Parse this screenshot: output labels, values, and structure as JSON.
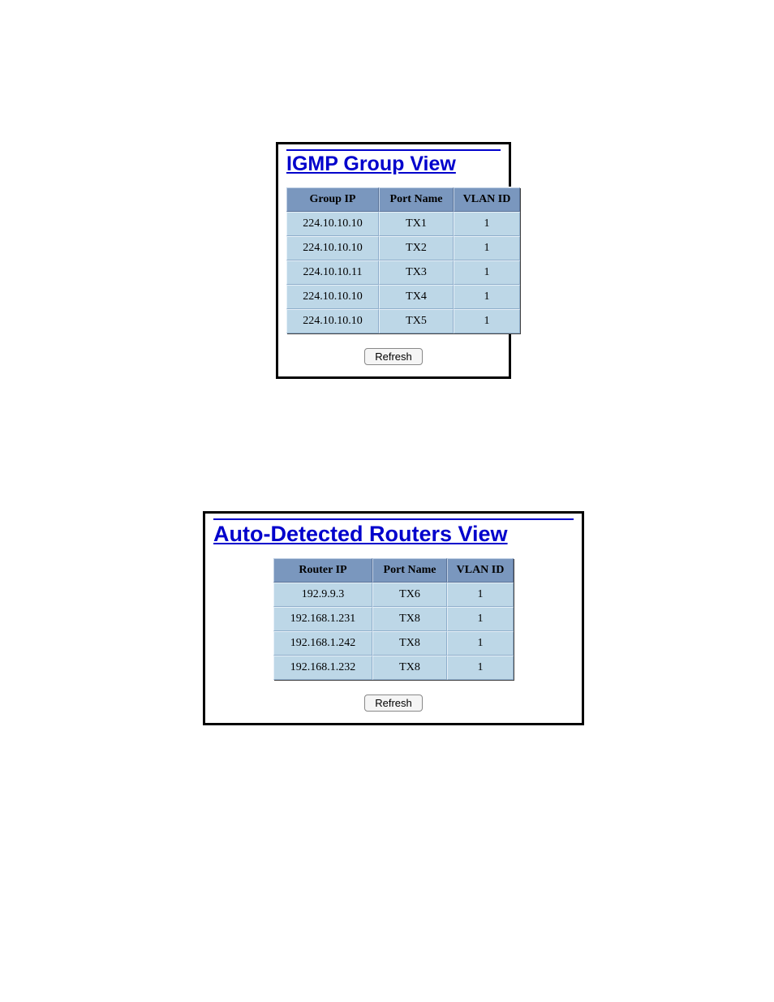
{
  "igmp": {
    "title": "IGMP Group View",
    "columns": [
      "Group IP",
      "Port Name",
      "VLAN ID"
    ],
    "rows": [
      [
        "224.10.10.10",
        "TX1",
        "1"
      ],
      [
        "224.10.10.10",
        "TX2",
        "1"
      ],
      [
        "224.10.10.11",
        "TX3",
        "1"
      ],
      [
        "224.10.10.10",
        "TX4",
        "1"
      ],
      [
        "224.10.10.10",
        "TX5",
        "1"
      ]
    ],
    "refresh_label": "Refresh"
  },
  "routers": {
    "title": "Auto-Detected Routers View",
    "columns": [
      "Router IP",
      "Port Name",
      "VLAN ID"
    ],
    "rows": [
      [
        "192.9.9.3",
        "TX6",
        "1"
      ],
      [
        "192.168.1.231",
        "TX8",
        "1"
      ],
      [
        "192.168.1.242",
        "TX8",
        "1"
      ],
      [
        "192.168.1.232",
        "TX8",
        "1"
      ]
    ],
    "refresh_label": "Refresh"
  },
  "style": {
    "title_color": "#0000cc",
    "header_bg": "#7a97be",
    "cell_bg": "#bdd7e7",
    "page_bg": "#ffffff",
    "border_color": "#000000",
    "font_body": "Times New Roman",
    "font_title": "Verdana",
    "title_fontsize_igmp": 25,
    "title_fontsize_routers": 27,
    "cell_fontsize": 14
  }
}
